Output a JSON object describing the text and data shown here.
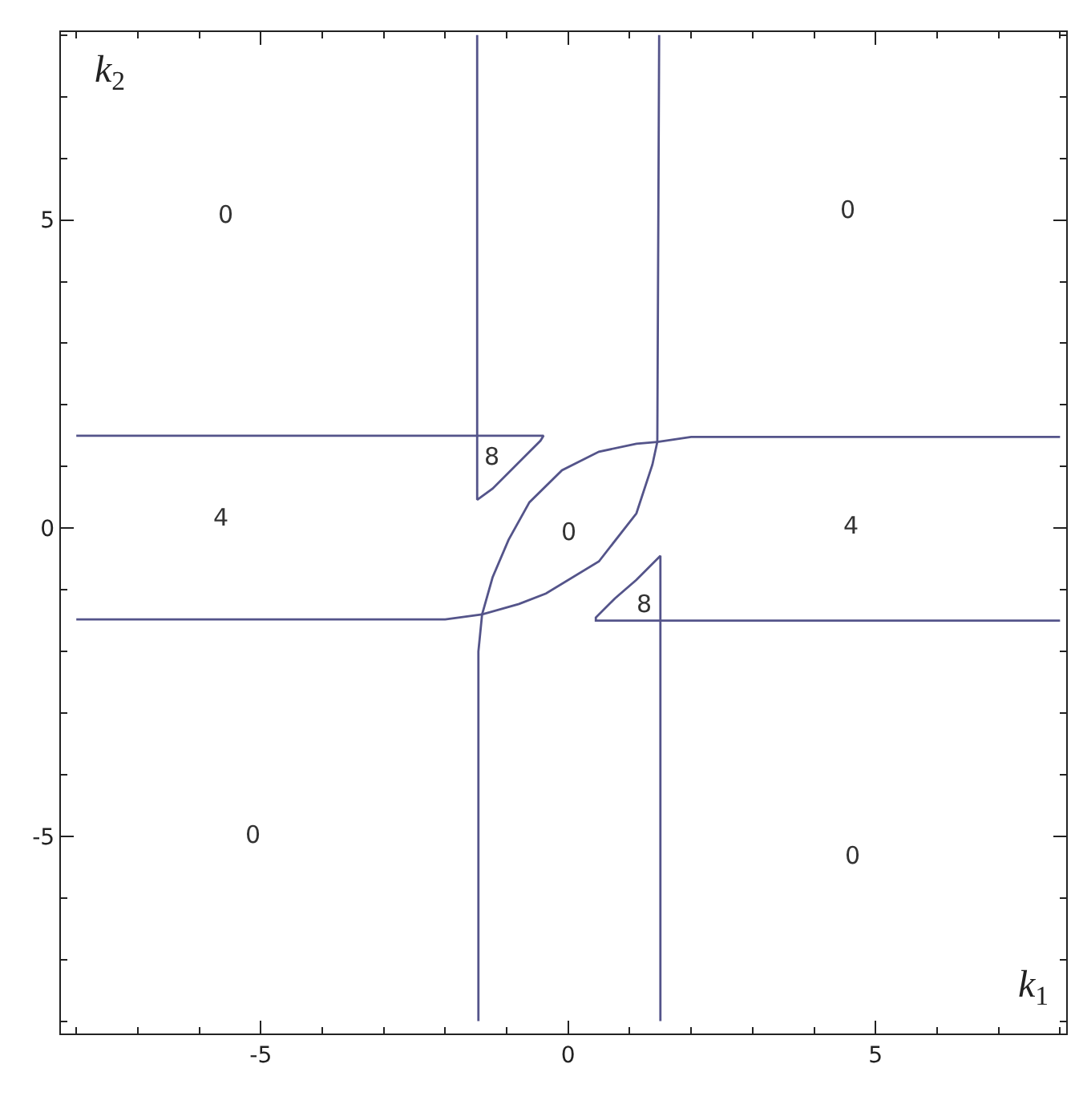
{
  "chart_data": {
    "type": "line",
    "xlabel": "k$_{1}$",
    "ylabel": "k$_{2}$",
    "xlim": [
      -8.25,
      8.1
    ],
    "ylim": [
      -8.2,
      8.05
    ],
    "xticks": [
      {
        "value": -8,
        "label": null
      },
      {
        "value": -7,
        "label": null
      },
      {
        "value": -6,
        "label": null
      },
      -5,
      {
        "value": -4,
        "label": null
      },
      {
        "value": -3,
        "label": null
      },
      {
        "value": -2,
        "label": null
      },
      {
        "value": -1,
        "label": null
      },
      0,
      {
        "value": 1,
        "label": null
      },
      {
        "value": 2,
        "label": null
      },
      {
        "value": 3,
        "label": null
      },
      {
        "value": 4,
        "label": null
      },
      5,
      {
        "value": 6,
        "label": null
      },
      {
        "value": 7,
        "label": null
      },
      {
        "value": 8,
        "label": null
      }
    ],
    "yticks": [
      {
        "value": -8,
        "label": null
      },
      {
        "value": -7,
        "label": null
      },
      {
        "value": -6,
        "label": null
      },
      -5,
      {
        "value": -4,
        "label": null
      },
      {
        "value": -3,
        "label": null
      },
      {
        "value": -2,
        "label": null
      },
      {
        "value": -1,
        "label": null
      },
      0,
      {
        "value": 1,
        "label": null
      },
      {
        "value": 2,
        "label": null
      },
      {
        "value": 3,
        "label": null
      },
      {
        "value": 4,
        "label": null
      },
      5,
      {
        "value": 6,
        "label": null
      },
      {
        "value": 7,
        "label": null
      },
      {
        "value": 8,
        "label": null
      }
    ],
    "grid": false,
    "marker": "none",
    "line_style": "solid",
    "series": [
      {
        "color": "#54548a",
        "x": [
          -8,
          -0.4,
          -0.45,
          -0.71,
          -0.97,
          -1.23,
          -1.48,
          -1.48
        ],
        "values": [
          1.5,
          1.5,
          1.42,
          1.16,
          0.9,
          0.64,
          0.46,
          8
        ]
      },
      {
        "color": "#54548a",
        "x": [
          1.48,
          1.45,
          2,
          8
        ],
        "values": [
          8,
          1.4,
          1.48,
          1.48
        ]
      },
      {
        "color": "#54548a",
        "x": [
          -1.4,
          -1.23,
          -0.97,
          -0.63,
          -0.1,
          0.5,
          1.11,
          1.45
        ],
        "values": [
          -1.4,
          -0.8,
          -0.19,
          0.42,
          0.94,
          1.24,
          1.37,
          1.4
        ]
      },
      {
        "color": "#54548a",
        "x": [
          -1.4,
          -0.8,
          -0.36,
          0.5,
          1.11,
          1.37,
          1.45
        ],
        "values": [
          -1.4,
          -1.23,
          -1.06,
          -0.54,
          0.24,
          1.03,
          1.4
        ]
      },
      {
        "color": "#54548a",
        "x": [
          -8,
          -2,
          -1.4,
          -1.46,
          -1.46
        ],
        "values": [
          -1.48,
          -1.48,
          -1.4,
          -2,
          -8
        ]
      },
      {
        "color": "#54548a",
        "x": [
          1.5,
          1.5,
          1.37,
          1.11,
          0.76,
          0.45,
          0.45,
          8
        ],
        "values": [
          -8,
          -0.45,
          -0.58,
          -0.84,
          -1.14,
          -1.45,
          -1.5,
          -1.5
        ]
      }
    ],
    "annotations": [
      "0",
      "0",
      "4",
      "4",
      "0",
      "8",
      "8",
      "0",
      "0"
    ]
  }
}
